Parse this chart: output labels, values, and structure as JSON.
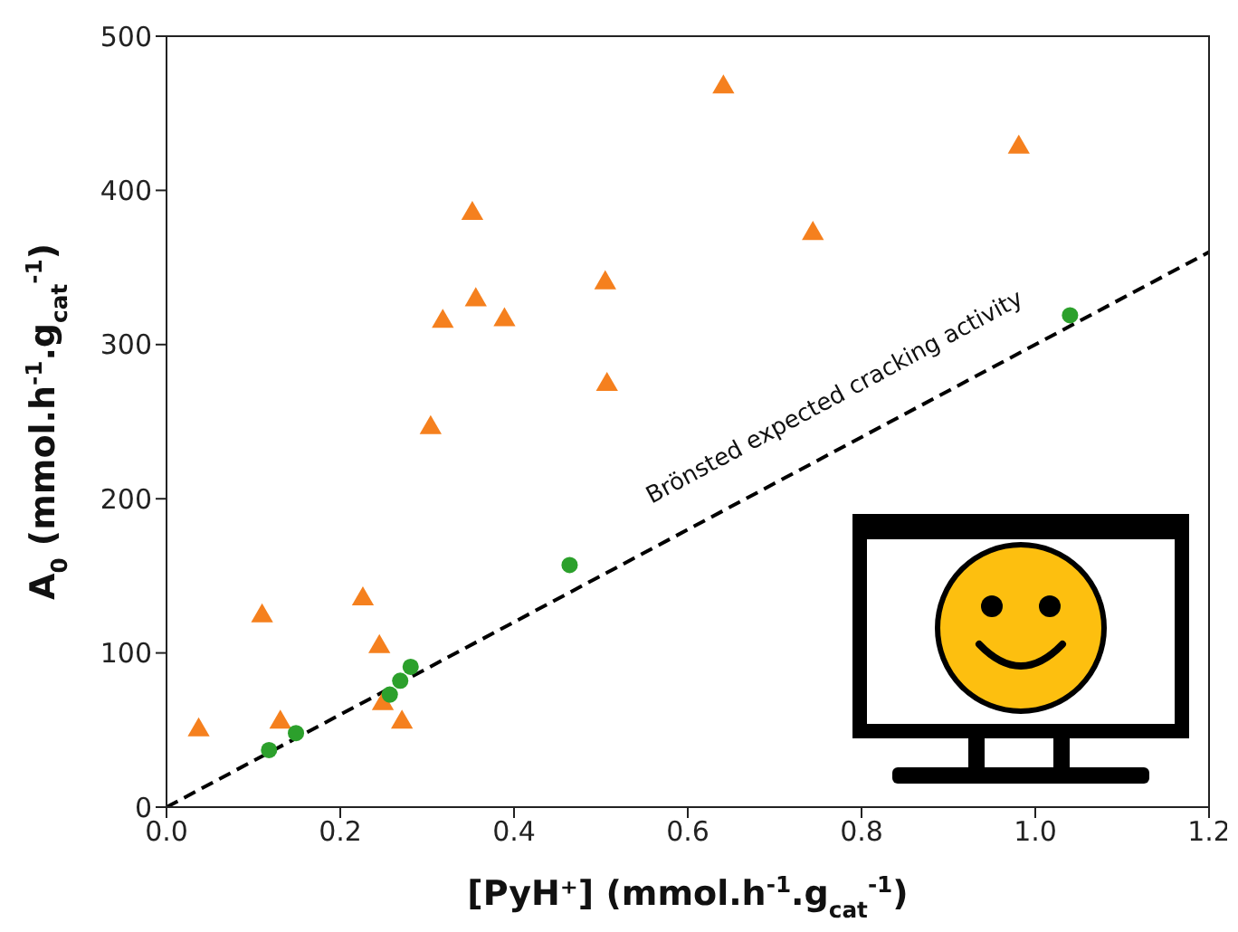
{
  "chart_data": {
    "type": "scatter",
    "xlabel": "[PyH⁺] (mmol.h$^{-1}$.g$_{cat}$$^{-1}$)",
    "ylabel": "A$_{0}$ (mmol.h$^{-1}$.g$_{cat}$$^{-1}$)",
    "xlim": [
      0,
      1.2
    ],
    "xticks": [
      {
        "value": 0,
        "label": "0.0"
      },
      0.2,
      0.4,
      0.6,
      0.8,
      {
        "value": 1,
        "label": "1.0"
      },
      1.2
    ],
    "ylim": [
      0,
      500
    ],
    "yticks": [
      0,
      100,
      200,
      300,
      400,
      500
    ],
    "grid": false,
    "legend": false,
    "annotations": [
      "Brönsted expected cracking activity"
    ],
    "series": [
      {
        "marker": "triangle",
        "color": "#f5801e",
        "x": [
          0.037,
          0.11,
          0.131,
          0.226,
          0.245,
          0.249,
          0.271,
          0.304,
          0.318,
          0.352,
          0.356,
          0.389,
          0.505,
          0.507,
          0.641,
          0.744,
          0.981
        ],
        "values": [
          50,
          124,
          55,
          135,
          104,
          67,
          55,
          246,
          315,
          385,
          329,
          316,
          340,
          274,
          467,
          372,
          428
        ]
      },
      {
        "marker": "circle",
        "color": "#2ca02c",
        "x": [
          0.118,
          0.149,
          0.257,
          0.269,
          0.281,
          0.464,
          1.04
        ],
        "values": [
          37,
          48,
          73,
          82,
          91,
          157,
          319
        ]
      },
      {
        "type": "line",
        "marker": "none",
        "line_style": "dashed",
        "color": "#000000",
        "x": [
          0,
          1.2
        ],
        "values": [
          0,
          360
        ]
      }
    ]
  }
}
